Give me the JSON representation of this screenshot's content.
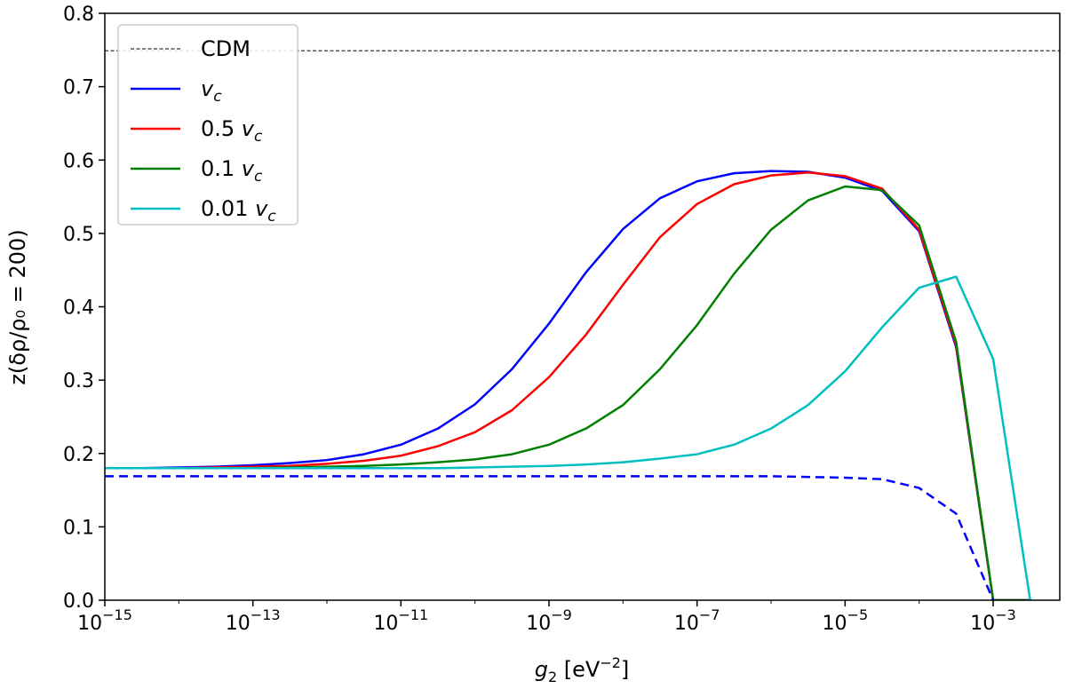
{
  "chart_data": {
    "type": "line",
    "title": "",
    "xlabel": {
      "base": "g",
      "sub": "2",
      "unit_pre": " [eV",
      "unit_sup": "−2",
      "unit_post": "]"
    },
    "ylabel": "z(δρ/ρ₀ = 200)",
    "xscale": "log",
    "xlim_exp": [
      -15,
      -2.1
    ],
    "ylim": [
      0.0,
      0.8
    ],
    "x_tick_exponents": [
      "−15",
      "−13",
      "−11",
      "−9",
      "−7",
      "−5",
      "−3"
    ],
    "x_tick_values": [
      -15,
      -13,
      -11,
      -9,
      -7,
      -5,
      -3
    ],
    "y_ticks": [
      "0.0",
      "0.1",
      "0.2",
      "0.3",
      "0.4",
      "0.5",
      "0.6",
      "0.7",
      "0.8"
    ],
    "y_tick_values": [
      0.0,
      0.1,
      0.2,
      0.3,
      0.4,
      0.5,
      0.6,
      0.7,
      0.8
    ],
    "legend_position": "top-left",
    "x_log10": [
      -15,
      -14.5,
      -14,
      -13.5,
      -13,
      -12.5,
      -12,
      -11.5,
      -11,
      -10.5,
      -10,
      -9.5,
      -9,
      -8.5,
      -8,
      -7.5,
      -7,
      -6.5,
      -6,
      -5.5,
      -5,
      -4.5,
      -4,
      -3.5,
      -3,
      -2.5
    ],
    "series": [
      {
        "name": "CDM",
        "legend_main": "CDM",
        "legend_sub": "",
        "color": "#000000",
        "style": "dashed-thin",
        "values": [
          0.749,
          0.749
        ]
      },
      {
        "name": "v_c",
        "legend_main": "v",
        "legend_sub": "c",
        "color": "#0000ff",
        "style": "solid",
        "values": [
          0.18,
          0.18,
          0.181,
          0.182,
          0.184,
          0.187,
          0.191,
          0.199,
          0.212,
          0.234,
          0.267,
          0.315,
          0.377,
          0.447,
          0.506,
          0.548,
          0.571,
          0.582,
          0.585,
          0.584,
          0.576,
          0.558,
          0.503,
          0.345,
          0.0,
          0.0
        ]
      },
      {
        "name": "0.5 v_c",
        "legend_main": "0.5 v",
        "legend_sub": "c",
        "color": "#ff0000",
        "style": "solid",
        "values": [
          0.18,
          0.18,
          0.18,
          0.181,
          0.182,
          0.183,
          0.186,
          0.19,
          0.197,
          0.21,
          0.229,
          0.259,
          0.304,
          0.362,
          0.43,
          0.495,
          0.54,
          0.567,
          0.579,
          0.583,
          0.578,
          0.561,
          0.505,
          0.348,
          0.0,
          0.0
        ]
      },
      {
        "name": "0.1 v_c",
        "legend_main": "0.1 v",
        "legend_sub": "c",
        "color": "#008000",
        "style": "solid",
        "values": [
          0.18,
          0.18,
          0.18,
          0.18,
          0.18,
          0.181,
          0.182,
          0.183,
          0.185,
          0.188,
          0.192,
          0.199,
          0.212,
          0.234,
          0.266,
          0.315,
          0.375,
          0.445,
          0.505,
          0.545,
          0.564,
          0.559,
          0.511,
          0.352,
          0.0,
          0.0
        ]
      },
      {
        "name": "0.01 v_c",
        "legend_main": "0.01 v",
        "legend_sub": "c",
        "color": "#00bfbf",
        "style": "solid",
        "values": [
          0.18,
          0.18,
          0.18,
          0.18,
          0.18,
          0.18,
          0.18,
          0.18,
          0.18,
          0.18,
          0.181,
          0.182,
          0.183,
          0.185,
          0.188,
          0.193,
          0.199,
          0.212,
          0.234,
          0.266,
          0.312,
          0.372,
          0.426,
          0.441,
          0.329,
          0.0
        ]
      },
      {
        "name": "v_c (dashed)",
        "legend_main": "",
        "legend_sub": "",
        "color": "#0000ff",
        "style": "dashed",
        "x_log10": [
          -15,
          -14,
          -13,
          -12,
          -11,
          -10,
          -9,
          -8,
          -7,
          -6,
          -5,
          -4.5,
          -4,
          -3.5,
          -3,
          -2.9
        ],
        "values": [
          0.169,
          0.169,
          0.169,
          0.169,
          0.169,
          0.169,
          0.169,
          0.169,
          0.169,
          0.169,
          0.167,
          0.165,
          0.153,
          0.118,
          0.0,
          -0.02
        ]
      }
    ]
  }
}
